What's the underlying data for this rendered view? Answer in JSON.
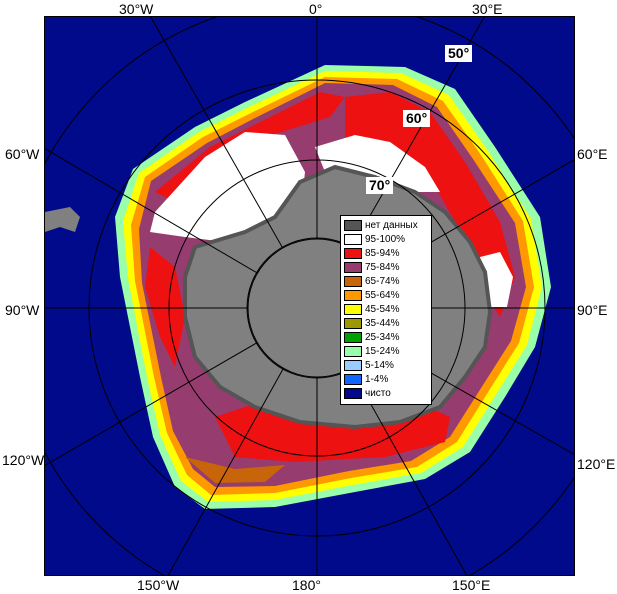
{
  "longitude_labels": {
    "top": [
      "30°W",
      "0°",
      "30°E"
    ],
    "left": [
      "60°W",
      "90°W",
      "120°W"
    ],
    "right": [
      "60°E",
      "90°E",
      "120°E"
    ],
    "bottom": [
      "150°W",
      "180°",
      "150°E"
    ]
  },
  "latitude_labels": [
    "50°",
    "60°",
    "70°"
  ],
  "legend": [
    {
      "label": "нет данных",
      "color": "#555555"
    },
    {
      "label": "95-100%",
      "color": "#ffffff"
    },
    {
      "label": "85-94%",
      "color": "#ee1111"
    },
    {
      "label": "75-84%",
      "color": "#963c6e"
    },
    {
      "label": "65-74%",
      "color": "#c8640a"
    },
    {
      "label": "55-64%",
      "color": "#ff9900"
    },
    {
      "label": "45-54%",
      "color": "#ffff00"
    },
    {
      "label": "35-44%",
      "color": "#9a9a00"
    },
    {
      "label": "25-34%",
      "color": "#00a000"
    },
    {
      "label": "15-24%",
      "color": "#99ffaa"
    },
    {
      "label": "5-14%",
      "color": "#99ccff"
    },
    {
      "label": "1-4%",
      "color": "#1166ff"
    },
    {
      "label": "чисто",
      "color": "#000a8a"
    }
  ]
}
